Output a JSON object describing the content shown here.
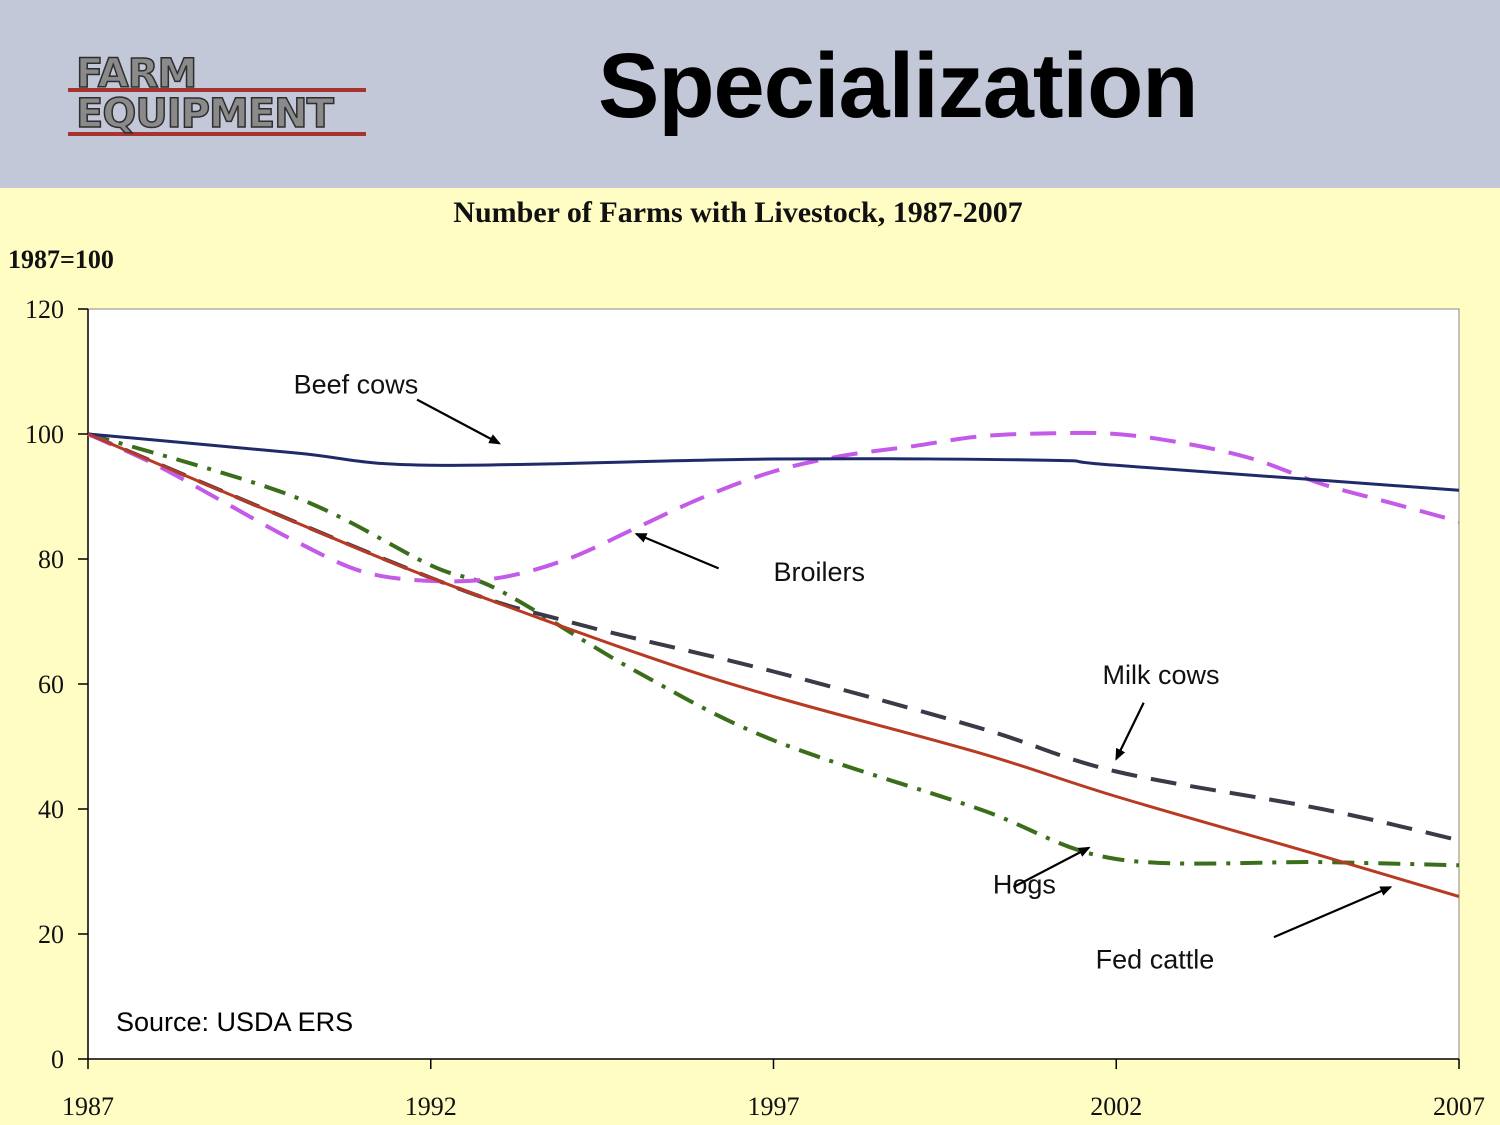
{
  "header": {
    "logo_line1": "FARM",
    "logo_line2": "EQUIPMENT",
    "title": "Specialization"
  },
  "colors": {
    "header_bg": "#c3c8d8",
    "slide_bg": "#fffdc4",
    "plot_bg": "#ffffff",
    "beef_cows": "#1f2a6b",
    "broilers": "#c45ae8",
    "milk_cows": "#3a3a48",
    "hogs": "#3a6e1a",
    "fed_cattle": "#b83a22",
    "logo_red": "#a8322d"
  },
  "source": "Source:  USDA ERS",
  "chart_data": {
    "type": "line",
    "title": "Number of Farms with Livestock, 1987-2007",
    "ylabel": "1987=100",
    "xlabel": "",
    "xlim": [
      1987,
      2007
    ],
    "ylim": [
      0,
      120
    ],
    "x_ticks": [
      "1987",
      "1992",
      "1997",
      "2002",
      "2007"
    ],
    "y_ticks": [
      "0",
      "20",
      "40",
      "60",
      "80",
      "100",
      "120"
    ],
    "legend": "none (inline annotations with arrows)",
    "grid": false,
    "series": [
      {
        "name": "Beef cows",
        "style": "solid",
        "color": "#1f2a6b",
        "x": [
          1987,
          1990,
          1992,
          1997,
          2001,
          2002,
          2007
        ],
        "y": [
          100,
          97,
          95,
          96,
          95.8,
          95,
          91
        ]
      },
      {
        "name": "Broilers",
        "style": "dashed",
        "color": "#c45ae8",
        "x": [
          1987,
          1988,
          1989,
          1990,
          1991,
          1992,
          1993,
          1994,
          1995,
          1996,
          1997,
          1998,
          1999,
          2000,
          2001,
          2002,
          2003,
          2004,
          2005,
          2006,
          2007
        ],
        "y": [
          100,
          95,
          89,
          83,
          78,
          76.5,
          77,
          80,
          85,
          90,
          94,
          96.5,
          98,
          99.6,
          100.1,
          100,
          98.5,
          96,
          92,
          89,
          86
        ]
      },
      {
        "name": "Milk cows",
        "style": "dashed",
        "color": "#3a3a48",
        "x": [
          1987,
          1992,
          1994,
          1997,
          2000,
          2002,
          2005,
          2007
        ],
        "y": [
          100,
          77,
          70,
          62,
          53,
          46,
          40,
          35
        ]
      },
      {
        "name": "Hogs",
        "style": "dashdot",
        "color": "#3a6e1a",
        "x": [
          1987,
          1990,
          1992,
          1993,
          1995,
          1997,
          2000,
          2002,
          2005,
          2007
        ],
        "y": [
          100,
          90,
          79,
          75,
          62,
          51,
          40,
          32,
          31.5,
          31
        ]
      },
      {
        "name": "Fed cattle",
        "style": "solid",
        "color": "#b83a22",
        "x": [
          1987,
          1990,
          1992,
          1995,
          1997,
          2000,
          2002,
          2005,
          2007
        ],
        "y": [
          100,
          86,
          77,
          65,
          58,
          49,
          42,
          32.5,
          26
        ]
      }
    ],
    "annotations": [
      {
        "label": "Beef cows",
        "text_at": [
          1990.0,
          106.5
        ],
        "arrow_from": [
          1991.8,
          105.5
        ],
        "arrow_to": [
          1993.0,
          98.5
        ]
      },
      {
        "label": "Broilers",
        "text_at": [
          1997.0,
          76.5
        ],
        "arrow_from": [
          1996.2,
          78.5
        ],
        "arrow_to": [
          1995.0,
          84.0
        ]
      },
      {
        "label": "Milk cows",
        "text_at": [
          2001.8,
          60.0
        ],
        "arrow_from": [
          2002.4,
          57.0
        ],
        "arrow_to": [
          2002.0,
          48.0
        ]
      },
      {
        "label": "Hogs",
        "text_at": [
          2000.2,
          26.5
        ],
        "arrow_from": [
          2000.5,
          27.5
        ],
        "arrow_to": [
          2001.6,
          33.8
        ]
      },
      {
        "label": "Fed cattle",
        "text_at": [
          2001.7,
          14.5
        ],
        "arrow_from": [
          2004.3,
          19.5
        ],
        "arrow_to": [
          2006.0,
          27.5
        ]
      }
    ]
  }
}
